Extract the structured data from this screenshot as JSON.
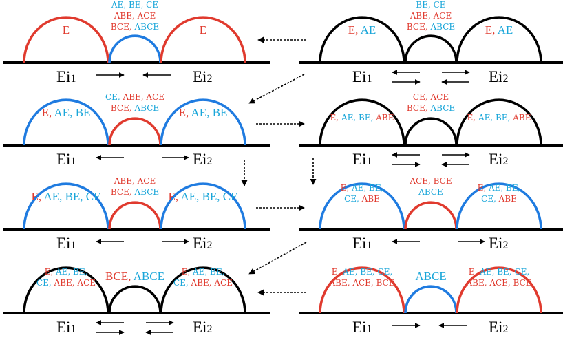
{
  "colors": {
    "red": "#e03a2e",
    "blue": "#1f7be0",
    "cyan": "#1aa6d9",
    "black": "#000000"
  },
  "nodes": {
    "left": "Ei1",
    "right": "Ei2"
  },
  "panels": [
    {
      "arcs": [
        "red",
        "blue",
        "red"
      ],
      "left": [
        [
          [
            "E",
            "red"
          ]
        ]
      ],
      "right": [
        [
          [
            "E",
            "red"
          ]
        ]
      ],
      "middle": [
        [
          [
            "AE, BE, CE",
            "cyan"
          ]
        ],
        [
          [
            "ABE, ACE",
            "red"
          ]
        ],
        [
          [
            "BCE, ",
            "red"
          ],
          [
            "ABCE",
            "cyan"
          ]
        ]
      ],
      "arrows": "in1"
    },
    {
      "arcs": [
        "black",
        "black",
        "black"
      ],
      "left": [
        [
          [
            "E, ",
            "red"
          ],
          [
            "AE",
            "cyan"
          ]
        ]
      ],
      "right": [
        [
          [
            "E, ",
            "red"
          ],
          [
            "AE",
            "cyan"
          ]
        ]
      ],
      "middle": [
        [
          [
            "BE, CE",
            "cyan"
          ]
        ],
        [
          [
            "ABE, ACE",
            "red"
          ]
        ],
        [
          [
            "BCE, ",
            "red"
          ],
          [
            "ABCE",
            "cyan"
          ]
        ]
      ],
      "arrows": "both2"
    },
    {
      "arcs": [
        "blue",
        "red",
        "blue"
      ],
      "left": [
        [
          [
            "E, ",
            "red"
          ],
          [
            "AE, BE",
            "cyan"
          ]
        ]
      ],
      "right": [
        [
          [
            "E, ",
            "red"
          ],
          [
            "AE, BE",
            "cyan"
          ]
        ]
      ],
      "middle": [
        [
          [
            "CE, ",
            "cyan"
          ],
          [
            "ABE, ACE",
            "red"
          ]
        ],
        [
          [
            "BCE, ",
            "red"
          ],
          [
            "ABCE",
            "cyan"
          ]
        ]
      ],
      "arrows": "out1"
    },
    {
      "arcs": [
        "black",
        "black",
        "black"
      ],
      "left": [
        [
          [
            "E, ",
            "red"
          ],
          [
            "AE, BE, ",
            "cyan"
          ],
          [
            "ABE",
            "red"
          ]
        ]
      ],
      "right": [
        [
          [
            "E, ",
            "red"
          ],
          [
            "AE, BE, ",
            "cyan"
          ],
          [
            "ABE",
            "red"
          ]
        ]
      ],
      "middle": [
        [
          [
            "CE, ACE",
            "red"
          ]
        ],
        [
          [
            "BCE, ",
            "red"
          ],
          [
            "ABCE",
            "cyan"
          ]
        ]
      ],
      "arrows": "both2"
    },
    {
      "arcs": [
        "blue",
        "red",
        "blue"
      ],
      "left": [
        [
          [
            "E, ",
            "red"
          ],
          [
            "AE, BE, CE",
            "cyan"
          ]
        ]
      ],
      "right": [
        [
          [
            "E, ",
            "red"
          ],
          [
            "AE, BE, CE",
            "cyan"
          ]
        ]
      ],
      "middle": [
        [
          [
            "ABE, ACE",
            "red"
          ]
        ],
        [
          [
            "BCE, ",
            "red"
          ],
          [
            "ABCE",
            "cyan"
          ]
        ]
      ],
      "arrows": "out1"
    },
    {
      "arcs": [
        "blue",
        "red",
        "blue"
      ],
      "left": [
        [
          [
            "E, ",
            "red"
          ],
          [
            "AE, BE,",
            "cyan"
          ]
        ],
        [
          [
            "CE, ",
            "cyan"
          ],
          [
            "ABE",
            "red"
          ]
        ]
      ],
      "right": [
        [
          [
            "E, ",
            "red"
          ],
          [
            "AE, BE,",
            "cyan"
          ]
        ],
        [
          [
            "CE, ",
            "cyan"
          ],
          [
            "ABE",
            "red"
          ]
        ]
      ],
      "middle": [
        [
          [
            "ACE, BCE",
            "red"
          ]
        ],
        [
          [
            "ABCE",
            "cyan"
          ]
        ]
      ],
      "arrows": "out1"
    },
    {
      "arcs": [
        "black",
        "black",
        "black"
      ],
      "left": [
        [
          [
            "E, ",
            "red"
          ],
          [
            "AE, BE,",
            "cyan"
          ]
        ],
        [
          [
            "CE, ",
            "cyan"
          ],
          [
            "ABE, ACE",
            "red"
          ]
        ]
      ],
      "right": [
        [
          [
            "E, ",
            "red"
          ],
          [
            "AE, BE,",
            "cyan"
          ]
        ],
        [
          [
            "CE, ",
            "cyan"
          ],
          [
            "ABE, ACE",
            "red"
          ]
        ]
      ],
      "middle": [
        [
          [
            "BCE, ",
            "red"
          ],
          [
            "ABCE",
            "cyan"
          ]
        ]
      ],
      "arrows": "both2"
    },
    {
      "arcs": [
        "red",
        "blue",
        "red"
      ],
      "left": [
        [
          [
            "E, ",
            "red"
          ],
          [
            "AE, BE, CE,",
            "cyan"
          ]
        ],
        [
          [
            "ABE, ACE, BCE",
            "red"
          ]
        ]
      ],
      "right": [
        [
          [
            "E, ",
            "red"
          ],
          [
            "AE, BE, CE,",
            "cyan"
          ]
        ],
        [
          [
            "ABE, ACE, BCE",
            "red"
          ]
        ]
      ],
      "middle": [
        [
          [
            "ABCE",
            "cyan"
          ]
        ]
      ],
      "arrows": "in1"
    }
  ]
}
